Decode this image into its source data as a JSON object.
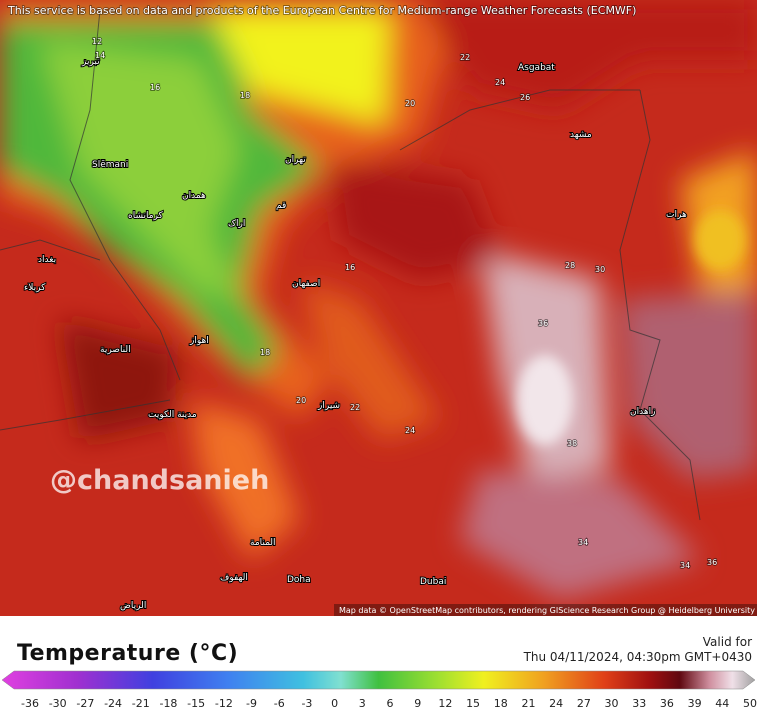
{
  "header": {
    "attribution": "This service is based on data and products of the European Centre for Medium-range Weather Forecasts (ECMWF)"
  },
  "map": {
    "watermark": "@chandsanieh",
    "credit": "Map data © OpenStreetMap contributors, rendering GIScience Research Group @ Heidelberg University",
    "cities": [
      "Asgabat",
      "Slēmani",
      "Dubai",
      "Doha",
      "تهران",
      "اصفهان",
      "شیراز",
      "مشهد",
      "زاهدان",
      "بغداد",
      "مدينة الكويت",
      "اهواز",
      "المنامة",
      "الرياض",
      "الهفوف",
      "الناصرية",
      "کرمانشاه",
      "همدان",
      "اراک",
      "تبریز",
      "قم",
      "هرات",
      "کربلاء"
    ],
    "temperature_labels": [
      12,
      14,
      16,
      18,
      20,
      22,
      24,
      26,
      28,
      30,
      34,
      36,
      38,
      16,
      18,
      20,
      22,
      24,
      34,
      36
    ]
  },
  "legend": {
    "title": "Temperature (°C)",
    "valid_label": "Valid for",
    "valid_time": "Thu 04/11/2024, 04:30pm GMT+0430",
    "ticks": [
      -36,
      -30,
      -27,
      -24,
      -21,
      -18,
      -15,
      -12,
      -9,
      -6,
      -3,
      0,
      3,
      6,
      9,
      12,
      15,
      18,
      21,
      24,
      27,
      30,
      33,
      36,
      39,
      44,
      50
    ]
  }
}
